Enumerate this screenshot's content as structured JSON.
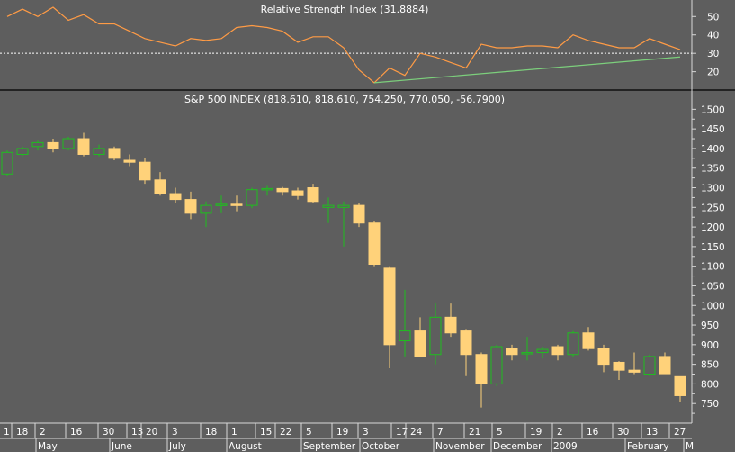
{
  "chart_data": [
    {
      "type": "line",
      "title": "Relative Strength Index (31.8884)",
      "y_ticks": [
        20,
        30,
        40,
        50
      ],
      "ylim": [
        12,
        56
      ],
      "reference_line": 30,
      "series": [
        {
          "name": "",
          "color": "#ff9b45",
          "values": [
            50,
            54,
            50,
            55,
            48,
            51,
            46,
            46,
            42,
            38,
            36,
            34,
            38,
            37,
            38,
            44,
            45,
            44,
            42,
            36,
            39,
            39,
            33,
            21,
            14,
            22,
            18,
            30,
            28,
            25,
            22,
            35,
            33,
            33,
            34,
            34,
            33,
            40,
            37,
            35,
            33,
            33,
            38,
            35,
            32
          ]
        }
      ],
      "trendline": {
        "color": "#7ccf7c",
        "from": [
          24,
          14
        ],
        "to": [
          44,
          28
        ]
      }
    },
    {
      "type": "candlestick",
      "title": "S&P 500 INDEX (818.610, 818.610, 754.250, 770.050, -56.7900)",
      "y_ticks": [
        750,
        800,
        850,
        900,
        950,
        1000,
        1050,
        1100,
        1150,
        1200,
        1250,
        1300,
        1350,
        1400,
        1450,
        1500
      ],
      "ylim": [
        700,
        1510
      ],
      "colors": {
        "up": "#1fbf1f",
        "down": "#ffd27a",
        "background": "#5e5e5e",
        "text": "#ffffff"
      },
      "candles": [
        {
          "o": 1335,
          "h": 1395,
          "l": 1330,
          "c": 1390
        },
        {
          "o": 1385,
          "h": 1405,
          "l": 1380,
          "c": 1400
        },
        {
          "o": 1405,
          "h": 1420,
          "l": 1395,
          "c": 1415
        },
        {
          "o": 1415,
          "h": 1425,
          "l": 1390,
          "c": 1400
        },
        {
          "o": 1400,
          "h": 1430,
          "l": 1395,
          "c": 1425
        },
        {
          "o": 1425,
          "h": 1440,
          "l": 1380,
          "c": 1385
        },
        {
          "o": 1385,
          "h": 1410,
          "l": 1380,
          "c": 1400
        },
        {
          "o": 1400,
          "h": 1405,
          "l": 1370,
          "c": 1375
        },
        {
          "o": 1370,
          "h": 1385,
          "l": 1355,
          "c": 1365
        },
        {
          "o": 1365,
          "h": 1375,
          "l": 1310,
          "c": 1320
        },
        {
          "o": 1320,
          "h": 1340,
          "l": 1280,
          "c": 1285
        },
        {
          "o": 1285,
          "h": 1300,
          "l": 1260,
          "c": 1270
        },
        {
          "o": 1270,
          "h": 1290,
          "l": 1220,
          "c": 1235
        },
        {
          "o": 1235,
          "h": 1265,
          "l": 1200,
          "c": 1255
        },
        {
          "o": 1255,
          "h": 1280,
          "l": 1235,
          "c": 1258
        },
        {
          "o": 1258,
          "h": 1280,
          "l": 1240,
          "c": 1255
        },
        {
          "o": 1255,
          "h": 1300,
          "l": 1248,
          "c": 1295
        },
        {
          "o": 1295,
          "h": 1305,
          "l": 1280,
          "c": 1298
        },
        {
          "o": 1298,
          "h": 1302,
          "l": 1280,
          "c": 1290
        },
        {
          "o": 1292,
          "h": 1300,
          "l": 1270,
          "c": 1280
        },
        {
          "o": 1300,
          "h": 1310,
          "l": 1260,
          "c": 1265
        },
        {
          "o": 1250,
          "h": 1275,
          "l": 1210,
          "c": 1255
        },
        {
          "o": 1250,
          "h": 1265,
          "l": 1150,
          "c": 1255
        },
        {
          "o": 1255,
          "h": 1260,
          "l": 1200,
          "c": 1210
        },
        {
          "o": 1210,
          "h": 1215,
          "l": 1100,
          "c": 1105
        },
        {
          "o": 1095,
          "h": 1100,
          "l": 840,
          "c": 900
        },
        {
          "o": 910,
          "h": 1040,
          "l": 870,
          "c": 935
        },
        {
          "o": 935,
          "h": 970,
          "l": 870,
          "c": 870
        },
        {
          "o": 875,
          "h": 1005,
          "l": 850,
          "c": 970
        },
        {
          "o": 970,
          "h": 1005,
          "l": 920,
          "c": 930
        },
        {
          "o": 935,
          "h": 940,
          "l": 820,
          "c": 875
        },
        {
          "o": 875,
          "h": 880,
          "l": 740,
          "c": 800
        },
        {
          "o": 800,
          "h": 900,
          "l": 795,
          "c": 895
        },
        {
          "o": 890,
          "h": 900,
          "l": 860,
          "c": 875
        },
        {
          "o": 878,
          "h": 920,
          "l": 860,
          "c": 880
        },
        {
          "o": 880,
          "h": 895,
          "l": 865,
          "c": 888
        },
        {
          "o": 895,
          "h": 900,
          "l": 860,
          "c": 875
        },
        {
          "o": 875,
          "h": 935,
          "l": 870,
          "c": 930
        },
        {
          "o": 930,
          "h": 945,
          "l": 885,
          "c": 890
        },
        {
          "o": 890,
          "h": 900,
          "l": 830,
          "c": 850
        },
        {
          "o": 855,
          "h": 858,
          "l": 810,
          "c": 835
        },
        {
          "o": 835,
          "h": 880,
          "l": 825,
          "c": 830
        },
        {
          "o": 825,
          "h": 875,
          "l": 820,
          "c": 870
        },
        {
          "o": 870,
          "h": 880,
          "l": 825,
          "c": 826
        },
        {
          "o": 818.61,
          "h": 818.61,
          "l": 754.25,
          "c": 770.05
        }
      ],
      "x_day_labels": [
        "1",
        "18",
        "2",
        "16",
        "30",
        "13",
        "20",
        "3",
        "18",
        "1",
        "15",
        "22",
        "5",
        "19",
        "3",
        "17",
        "24",
        "7",
        "21",
        "5",
        "19",
        "2",
        "16",
        "30",
        "13",
        "27"
      ],
      "x_month_labels": [
        "May",
        "June",
        "July",
        "August",
        "September",
        "October",
        "November",
        "December",
        "2009",
        "February",
        "M"
      ]
    }
  ]
}
